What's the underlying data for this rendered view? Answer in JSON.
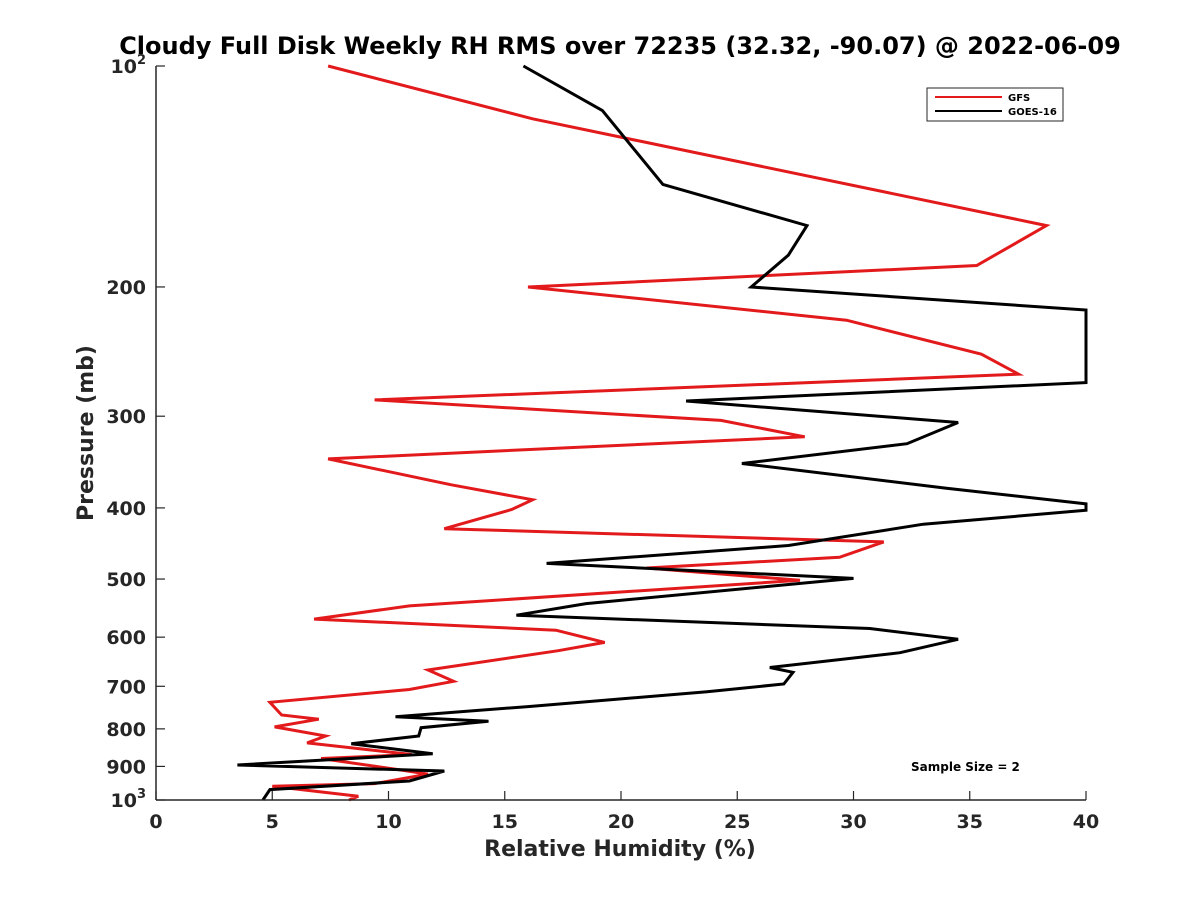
{
  "chart_data": {
    "type": "line",
    "title": "Cloudy Full Disk Weekly RH RMS over 72235 (32.32, -90.07) @ 2022-06-09",
    "xlabel": "Relative Humidity (%)",
    "ylabel": "Pressure (mb)",
    "xlim": [
      0,
      40
    ],
    "ylim": [
      100,
      1000
    ],
    "yscale": "log",
    "y_reversed": true,
    "grid": false,
    "x_ticks": [
      0,
      5,
      10,
      15,
      20,
      25,
      30,
      35,
      40
    ],
    "x_tick_labels": [
      "0",
      "5",
      "10",
      "15",
      "20",
      "25",
      "30",
      "35",
      "40"
    ],
    "y_ticks": [
      {
        "value": 100,
        "base": "10",
        "exp": "2"
      },
      {
        "value": 200,
        "label": "200"
      },
      {
        "value": 300,
        "label": "300"
      },
      {
        "value": 400,
        "label": "400"
      },
      {
        "value": 500,
        "label": "500"
      },
      {
        "value": 600,
        "label": "600"
      },
      {
        "value": 700,
        "label": "700"
      },
      {
        "value": 800,
        "label": "800"
      },
      {
        "value": 900,
        "label": "900"
      },
      {
        "value": 1000,
        "base": "10",
        "exp": "3"
      }
    ],
    "legend_position": "top-right",
    "annotation": "Sample Size = 2",
    "series": [
      {
        "name": "GFS",
        "color": "#e31a1c",
        "points": [
          [
            7.4,
            100
          ],
          [
            16.2,
            118
          ],
          [
            38.3,
            165
          ],
          [
            35.3,
            187
          ],
          [
            16.0,
            200
          ],
          [
            29.7,
            222
          ],
          [
            35.5,
            247
          ],
          [
            37.1,
            263
          ],
          [
            9.4,
            285
          ],
          [
            24.3,
            304
          ],
          [
            27.9,
            320
          ],
          [
            7.4,
            343
          ],
          [
            12.7,
            372
          ],
          [
            16.2,
            390
          ],
          [
            15.3,
            402
          ],
          [
            12.4,
            427
          ],
          [
            31.3,
            445
          ],
          [
            29.4,
            467
          ],
          [
            21.1,
            483
          ],
          [
            27.7,
            502
          ],
          [
            10.9,
            544
          ],
          [
            6.8,
            567
          ],
          [
            17.2,
            587
          ],
          [
            19.3,
            610
          ],
          [
            17.3,
            626
          ],
          [
            11.7,
            665
          ],
          [
            12.8,
            689
          ],
          [
            10.9,
            707
          ],
          [
            4.9,
            736
          ],
          [
            5.4,
            766
          ],
          [
            7.0,
            776
          ],
          [
            5.1,
            795
          ],
          [
            7.3,
            818
          ],
          [
            6.5,
            836
          ],
          [
            11.0,
            867
          ],
          [
            7.1,
            878
          ],
          [
            10.5,
            910
          ],
          [
            11.7,
            922
          ],
          [
            9.4,
            950
          ],
          [
            5.0,
            958
          ],
          [
            8.7,
            988
          ],
          [
            8.3,
            1000
          ]
        ]
      },
      {
        "name": "GOES-16",
        "color": "#000000",
        "points": [
          [
            15.8,
            100
          ],
          [
            19.2,
            115
          ],
          [
            21.8,
            145
          ],
          [
            28.0,
            165
          ],
          [
            27.2,
            181
          ],
          [
            25.6,
            200
          ],
          [
            40.0,
            215
          ],
          [
            40.0,
            270
          ],
          [
            22.8,
            286
          ],
          [
            34.5,
            306
          ],
          [
            32.3,
            327
          ],
          [
            25.2,
            348
          ],
          [
            34.0,
            376
          ],
          [
            40.0,
            395
          ],
          [
            40.0,
            403
          ],
          [
            33.0,
            421
          ],
          [
            27.2,
            450
          ],
          [
            16.8,
            476
          ],
          [
            30.0,
            499
          ],
          [
            18.5,
            540
          ],
          [
            15.5,
            560
          ],
          [
            30.7,
            584
          ],
          [
            34.5,
            604
          ],
          [
            32.0,
            630
          ],
          [
            26.4,
            660
          ],
          [
            27.4,
            670
          ],
          [
            27.0,
            695
          ],
          [
            23.7,
            712
          ],
          [
            16.0,
            746
          ],
          [
            10.3,
            770
          ],
          [
            14.3,
            781
          ],
          [
            11.4,
            797
          ],
          [
            11.3,
            818
          ],
          [
            8.4,
            838
          ],
          [
            11.9,
            865
          ],
          [
            3.5,
            896
          ],
          [
            12.4,
            913
          ],
          [
            10.9,
            942
          ],
          [
            4.9,
            968
          ],
          [
            4.6,
            1000
          ]
        ]
      }
    ]
  }
}
